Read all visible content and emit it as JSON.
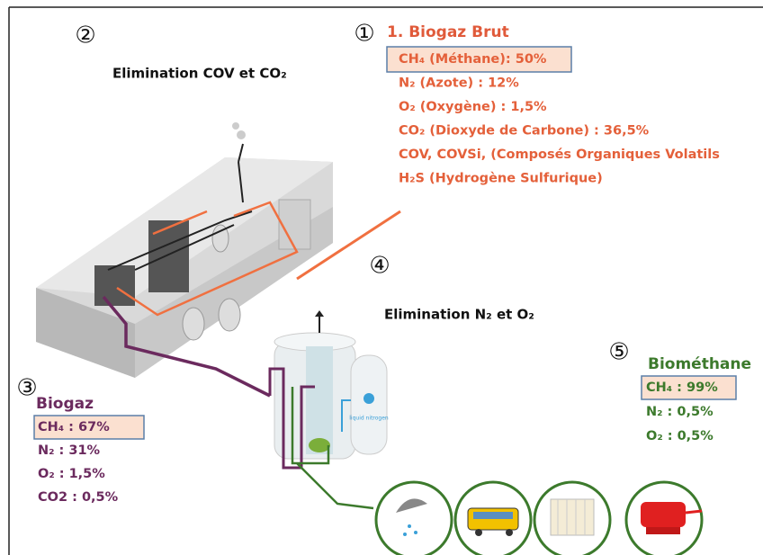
{
  "steps": [
    {
      "number": "①",
      "title": "1. Biogaz Brut",
      "lines": [
        "CH₄ (Méthane): 50%",
        "N₂ (Azote) : 12%",
        "O₂ (Oxygène) : 1,5%",
        "CO₂ (Dioxyde de Carbone) : 36,5%",
        "COV, COVSi, (Composés Organiques Volatils",
        "H₂S (Hydrogène Sulfurique)"
      ]
    },
    {
      "number": "②",
      "title": "Elimination COV et CO₂",
      "lines": []
    },
    {
      "number": "③",
      "title": "Biogaz",
      "lines": [
        "CH₄ : 67%",
        "N₂ : 31%",
        "O₂ : 1,5%",
        "CO2 : 0,5%"
      ]
    },
    {
      "number": "④",
      "title": "Elimination N₂ et O₂",
      "lines": []
    },
    {
      "number": "⑤",
      "title": "Biométhane",
      "lines": [
        "CH₄ : 99%",
        "N₂ : 0,5%",
        "O₂ : 0,5%"
      ]
    }
  ],
  "tank_label": "liquid nitrogen"
}
